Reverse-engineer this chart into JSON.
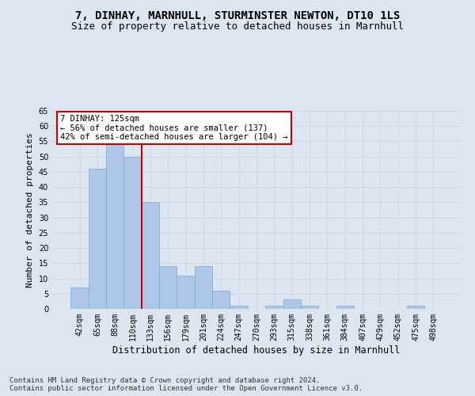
{
  "title1": "7, DINHAY, MARNHULL, STURMINSTER NEWTON, DT10 1LS",
  "title2": "Size of property relative to detached houses in Marnhull",
  "xlabel": "Distribution of detached houses by size in Marnhull",
  "ylabel": "Number of detached properties",
  "categories": [
    "42sqm",
    "65sqm",
    "88sqm",
    "110sqm",
    "133sqm",
    "156sqm",
    "179sqm",
    "201sqm",
    "224sqm",
    "247sqm",
    "270sqm",
    "293sqm",
    "315sqm",
    "338sqm",
    "361sqm",
    "384sqm",
    "407sqm",
    "429sqm",
    "452sqm",
    "475sqm",
    "498sqm"
  ],
  "values": [
    7,
    46,
    54,
    50,
    35,
    14,
    11,
    14,
    6,
    1,
    0,
    1,
    3,
    1,
    0,
    1,
    0,
    0,
    0,
    1,
    0
  ],
  "bar_color": "#aec6e8",
  "bar_edge_color": "#7aaad0",
  "bar_width": 1.0,
  "grid_color": "#d0d8e8",
  "background_color": "#dde6f0",
  "annotation_box_color": "#ffffff",
  "annotation_box_edge": "#cc0000",
  "vline_color": "#cc0000",
  "vline_x": 3.5,
  "annotation_text": "7 DINHAY: 125sqm\n← 56% of detached houses are smaller (137)\n42% of semi-detached houses are larger (104) →",
  "annotation_fontsize": 7.5,
  "title1_fontsize": 10,
  "title2_fontsize": 9,
  "xlabel_fontsize": 8.5,
  "ylabel_fontsize": 8,
  "tick_fontsize": 7,
  "footer": "Contains HM Land Registry data © Crown copyright and database right 2024.\nContains public sector information licensed under the Open Government Licence v3.0.",
  "footer_fontsize": 6.5,
  "ylim": [
    0,
    65
  ],
  "yticks": [
    0,
    5,
    10,
    15,
    20,
    25,
    30,
    35,
    40,
    45,
    50,
    55,
    60,
    65
  ]
}
